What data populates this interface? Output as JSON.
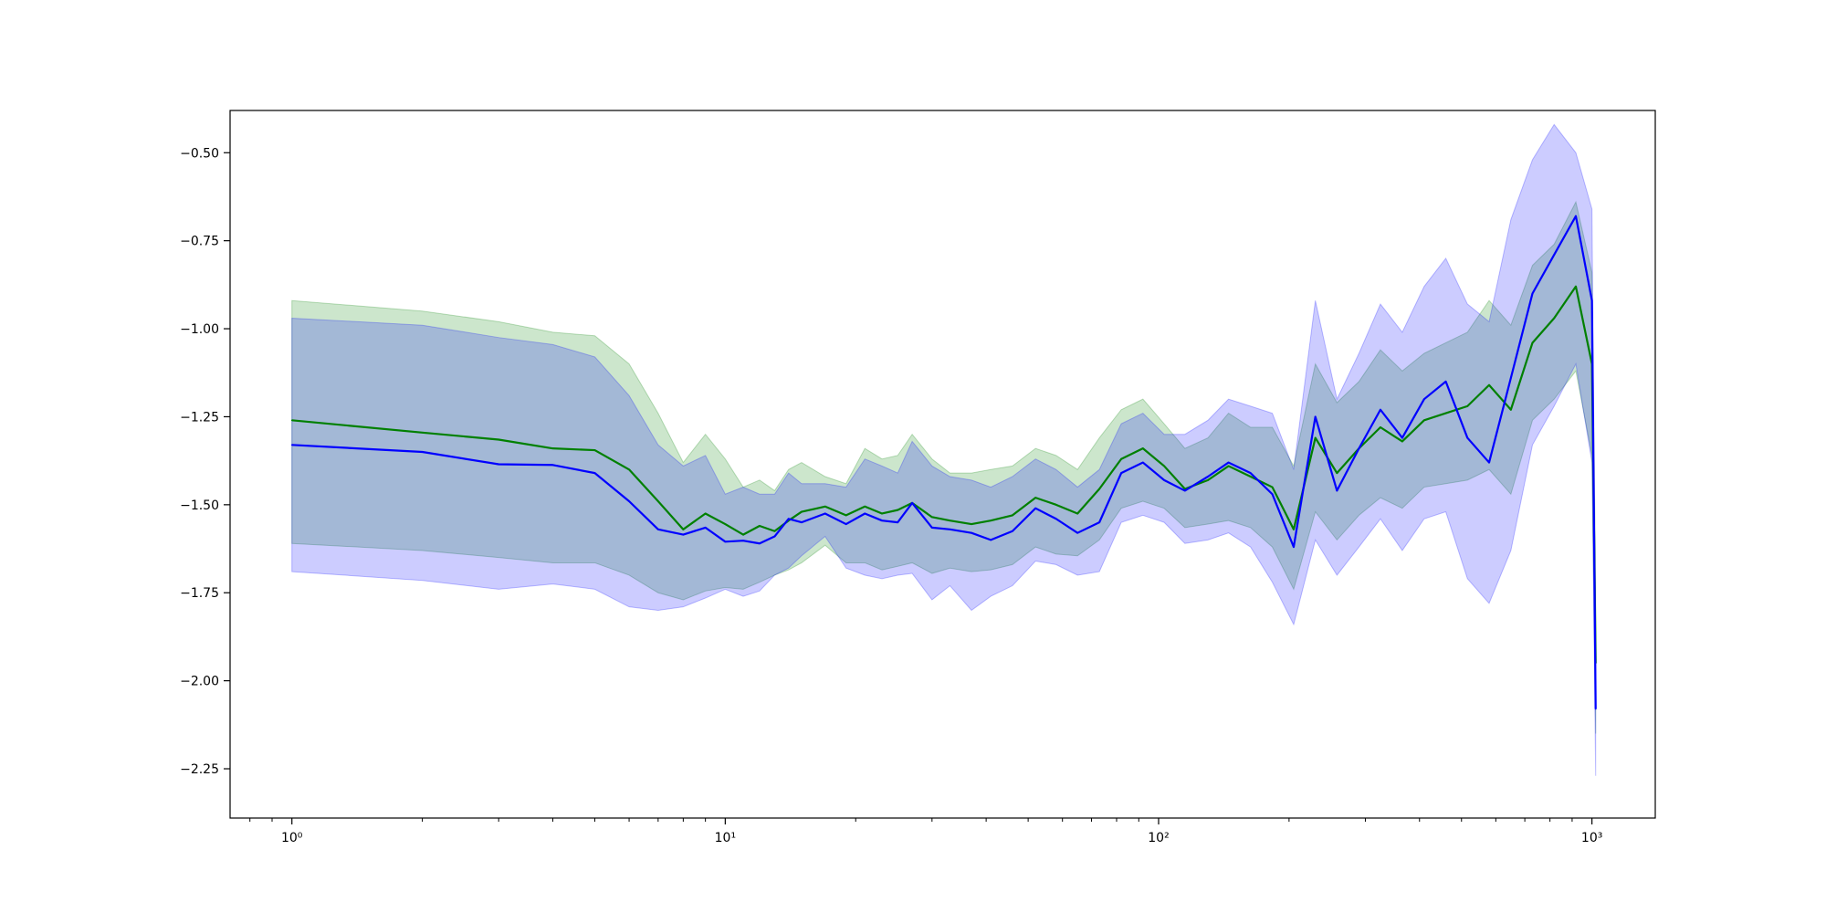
{
  "colors": {
    "green_line": "#008000",
    "blue_line": "#0000ff",
    "green_band": "#008000",
    "blue_band": "#0000ff",
    "background": "#ffffff",
    "axes": "#000000"
  },
  "chart_data": {
    "type": "line",
    "title": "",
    "xlabel": "",
    "ylabel": "",
    "x_scale": "log",
    "xlim": [
      0.72,
      1400
    ],
    "ylim": [
      -2.39,
      -0.38
    ],
    "grid": false,
    "legend": "none",
    "x_ticks": [
      {
        "value": 1,
        "label": "10⁰"
      },
      {
        "value": 10,
        "label": "10¹"
      },
      {
        "value": 100,
        "label": "10²"
      },
      {
        "value": 1000,
        "label": "10³"
      }
    ],
    "y_ticks": [
      {
        "value": -0.5,
        "label": "−0.50"
      },
      {
        "value": -0.75,
        "label": "−0.75"
      },
      {
        "value": -1.0,
        "label": "−1.00"
      },
      {
        "value": -1.25,
        "label": "−1.25"
      },
      {
        "value": -1.5,
        "label": "−1.50"
      },
      {
        "value": -1.75,
        "label": "−1.75"
      },
      {
        "value": -2.0,
        "label": "−2.00"
      },
      {
        "value": -2.25,
        "label": "−2.25"
      }
    ],
    "x": [
      1,
      2,
      3,
      4,
      5,
      6,
      7,
      8,
      9,
      10,
      11,
      12,
      13,
      14,
      15,
      17,
      19,
      21,
      23,
      25,
      27,
      30,
      33,
      37,
      41,
      46,
      52,
      58,
      65,
      73,
      82,
      92,
      103,
      115,
      130,
      145,
      163,
      183,
      205,
      230,
      258,
      290,
      325,
      365,
      410,
      460,
      516,
      579,
      650,
      729,
      818,
      918,
      1000,
      1020
    ],
    "series": [
      {
        "color_key": "green_line",
        "values": [
          -1.26,
          -1.295,
          -1.315,
          -1.34,
          -1.345,
          -1.4,
          -1.49,
          -1.57,
          -1.525,
          -1.555,
          -1.585,
          -1.56,
          -1.575,
          -1.545,
          -1.52,
          -1.505,
          -1.53,
          -1.505,
          -1.525,
          -1.515,
          -1.495,
          -1.535,
          -1.545,
          -1.555,
          -1.545,
          -1.53,
          -1.48,
          -1.5,
          -1.525,
          -1.455,
          -1.37,
          -1.34,
          -1.39,
          -1.455,
          -1.43,
          -1.39,
          -1.42,
          -1.45,
          -1.57,
          -1.31,
          -1.41,
          -1.34,
          -1.28,
          -1.32,
          -1.26,
          -1.24,
          -1.22,
          -1.16,
          -1.23,
          -1.04,
          -0.97,
          -0.88,
          -1.1,
          -1.95
        ],
        "lower": [
          -1.61,
          -1.63,
          -1.65,
          -1.665,
          -1.665,
          -1.7,
          -1.75,
          -1.77,
          -1.745,
          -1.735,
          -1.74,
          -1.72,
          -1.7,
          -1.685,
          -1.665,
          -1.615,
          -1.665,
          -1.665,
          -1.685,
          -1.675,
          -1.665,
          -1.695,
          -1.68,
          -1.69,
          -1.685,
          -1.67,
          -1.62,
          -1.64,
          -1.645,
          -1.6,
          -1.51,
          -1.49,
          -1.51,
          -1.565,
          -1.555,
          -1.545,
          -1.565,
          -1.62,
          -1.74,
          -1.52,
          -1.6,
          -1.53,
          -1.48,
          -1.51,
          -1.45,
          -1.44,
          -1.43,
          -1.4,
          -1.47,
          -1.26,
          -1.2,
          -1.12,
          -1.36,
          -2.15
        ],
        "upper": [
          -0.92,
          -0.95,
          -0.98,
          -1.01,
          -1.02,
          -1.1,
          -1.24,
          -1.38,
          -1.3,
          -1.37,
          -1.45,
          -1.43,
          -1.46,
          -1.4,
          -1.38,
          -1.42,
          -1.44,
          -1.34,
          -1.37,
          -1.36,
          -1.3,
          -1.37,
          -1.41,
          -1.41,
          -1.4,
          -1.39,
          -1.34,
          -1.36,
          -1.4,
          -1.31,
          -1.23,
          -1.2,
          -1.27,
          -1.34,
          -1.31,
          -1.24,
          -1.28,
          -1.28,
          -1.39,
          -1.1,
          -1.21,
          -1.15,
          -1.06,
          -1.12,
          -1.07,
          -1.04,
          -1.01,
          -0.92,
          -0.99,
          -0.82,
          -0.76,
          -0.64,
          -0.84,
          -1.72
        ]
      },
      {
        "color_key": "blue_line",
        "values": [
          -1.33,
          -1.35,
          -1.385,
          -1.387,
          -1.41,
          -1.49,
          -1.57,
          -1.585,
          -1.565,
          -1.605,
          -1.602,
          -1.61,
          -1.59,
          -1.54,
          -1.55,
          -1.525,
          -1.555,
          -1.525,
          -1.545,
          -1.55,
          -1.495,
          -1.565,
          -1.57,
          -1.58,
          -1.6,
          -1.575,
          -1.51,
          -1.54,
          -1.58,
          -1.55,
          -1.41,
          -1.38,
          -1.43,
          -1.46,
          -1.42,
          -1.38,
          -1.41,
          -1.47,
          -1.62,
          -1.25,
          -1.46,
          -1.34,
          -1.23,
          -1.31,
          -1.2,
          -1.15,
          -1.31,
          -1.38,
          -1.14,
          -0.9,
          -0.79,
          -0.68,
          -0.92,
          -2.08
        ],
        "lower": [
          -1.69,
          -1.715,
          -1.74,
          -1.725,
          -1.74,
          -1.79,
          -1.8,
          -1.79,
          -1.765,
          -1.74,
          -1.76,
          -1.745,
          -1.7,
          -1.68,
          -1.645,
          -1.59,
          -1.68,
          -1.7,
          -1.71,
          -1.7,
          -1.695,
          -1.77,
          -1.73,
          -1.8,
          -1.76,
          -1.73,
          -1.66,
          -1.67,
          -1.7,
          -1.69,
          -1.55,
          -1.53,
          -1.55,
          -1.61,
          -1.6,
          -1.58,
          -1.62,
          -1.72,
          -1.84,
          -1.6,
          -1.7,
          -1.62,
          -1.54,
          -1.63,
          -1.54,
          -1.52,
          -1.71,
          -1.78,
          -1.63,
          -1.33,
          -1.22,
          -1.1,
          -1.38,
          -2.27
        ],
        "upper": [
          -0.97,
          -0.99,
          -1.025,
          -1.045,
          -1.08,
          -1.19,
          -1.33,
          -1.39,
          -1.36,
          -1.47,
          -1.45,
          -1.47,
          -1.47,
          -1.41,
          -1.44,
          -1.44,
          -1.45,
          -1.37,
          -1.39,
          -1.41,
          -1.32,
          -1.39,
          -1.42,
          -1.43,
          -1.45,
          -1.42,
          -1.37,
          -1.4,
          -1.45,
          -1.4,
          -1.27,
          -1.24,
          -1.3,
          -1.3,
          -1.26,
          -1.2,
          -1.22,
          -1.24,
          -1.4,
          -0.92,
          -1.2,
          -1.07,
          -0.93,
          -1.01,
          -0.88,
          -0.8,
          -0.93,
          -0.98,
          -0.69,
          -0.52,
          -0.42,
          -0.5,
          -0.66,
          -1.88
        ]
      }
    ]
  }
}
